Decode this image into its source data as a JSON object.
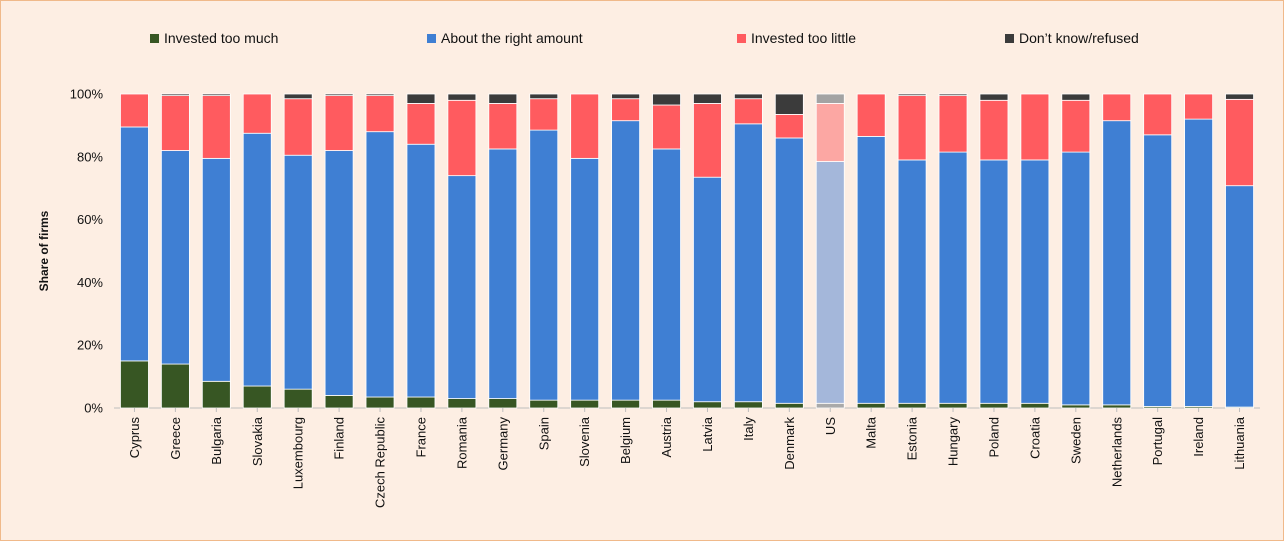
{
  "chart_data": {
    "type": "bar",
    "stacked": true,
    "ylabel": "Share of firms",
    "ylim": [
      0,
      100
    ],
    "yticks": [
      "0%",
      "20%",
      "40%",
      "60%",
      "80%",
      "100%"
    ],
    "yticks_values": [
      0,
      20,
      40,
      60,
      80,
      100
    ],
    "legend_position": "top",
    "grid": false,
    "categories": [
      "Cyprus",
      "Greece",
      "Bulgaria",
      "Slovakia",
      "Luxembourg",
      "Finland",
      "Czech Republic",
      "France",
      "Romania",
      "Germany",
      "Spain",
      "Slovenia",
      "Belgium",
      "Austria",
      "Latvia",
      "Italy",
      "Denmark",
      "US",
      "Malta",
      "Estonia",
      "Hungary",
      "Poland",
      "Croatia",
      "Sweden",
      "Netherlands",
      "Portugal",
      "Ireland",
      "Lithuania"
    ],
    "highlight_category": "US",
    "series": [
      {
        "name": "Invested too much",
        "color": "#375623",
        "highlight_color": "#a9a9a9",
        "values": [
          15,
          14,
          8.5,
          7,
          6,
          4,
          3.5,
          3.5,
          3,
          3,
          2.5,
          2.5,
          2.5,
          2.5,
          2,
          2,
          1.5,
          1.5,
          1.5,
          1.5,
          1.5,
          1.5,
          1.5,
          1,
          1,
          0.5,
          0.5,
          0.3
        ]
      },
      {
        "name": "About the right amount",
        "color": "#3f7fd3",
        "highlight_color": "#a4b7da",
        "values": [
          74.5,
          68,
          71,
          80.5,
          74.5,
          78,
          84.5,
          80.5,
          71,
          79.5,
          86,
          77,
          89,
          80,
          71.5,
          88.5,
          84.5,
          77,
          85,
          77.5,
          80,
          77.5,
          77.5,
          80.5,
          90.5,
          86.5,
          91.5,
          70.5
        ]
      },
      {
        "name": "Invested too little",
        "color": "#ff5b5f",
        "highlight_color": "#fca7a3",
        "values": [
          10.5,
          17.5,
          20,
          12.5,
          18,
          17.5,
          11.5,
          13,
          24,
          14.5,
          10,
          20.5,
          7,
          14,
          23.5,
          8,
          7.5,
          18.5,
          13.5,
          20.5,
          18,
          19,
          21,
          16.5,
          8.5,
          13,
          8,
          27.5
        ]
      },
      {
        "name": "Don’t know/refused",
        "color": "#3b3b3b",
        "highlight_color": "#a3a3a3",
        "values": [
          0,
          0.5,
          0.5,
          0,
          1.5,
          0.5,
          0.5,
          3,
          2,
          3,
          1.5,
          0,
          1.5,
          3.5,
          3,
          1.5,
          6.5,
          3,
          0,
          0.5,
          0.5,
          2,
          0,
          2,
          0,
          0,
          0,
          1.7
        ]
      }
    ]
  }
}
